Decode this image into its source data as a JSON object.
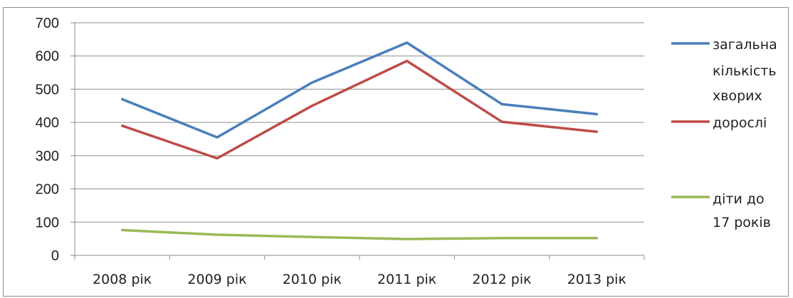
{
  "chart_data": {
    "type": "line",
    "categories": [
      "2008 рік",
      "2009 рік",
      "2010 рік",
      "2011  рік",
      "2012 рік",
      "2013 рік"
    ],
    "ylim": [
      0,
      700
    ],
    "yticks": [
      0,
      100,
      200,
      300,
      400,
      500,
      600,
      700
    ],
    "grid": true,
    "legend_position": "right",
    "series": [
      {
        "name": "загальна кількість хворих",
        "legend_lines": [
          "загальна",
          "кількість",
          "хворих"
        ],
        "color": "#4a7ebb",
        "values": [
          470,
          355,
          520,
          640,
          455,
          425
        ]
      },
      {
        "name": "дорослі",
        "legend_lines": [
          "дорослі"
        ],
        "color": "#be4b48",
        "values": [
          390,
          292,
          450,
          585,
          402,
          372
        ]
      },
      {
        "name": "діти до 17 років",
        "legend_lines": [
          "діти до",
          "17 років"
        ],
        "color": "#98b954",
        "values": [
          76,
          62,
          55,
          49,
          52,
          52
        ]
      }
    ]
  }
}
